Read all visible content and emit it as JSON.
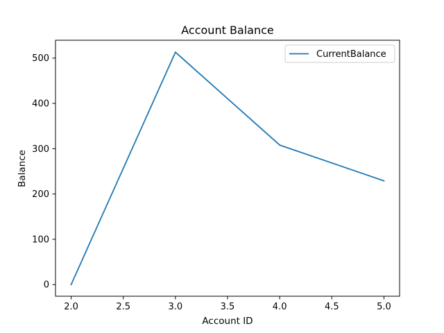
{
  "chart_data": {
    "type": "line",
    "title": "Account Balance",
    "xlabel": "Account ID",
    "ylabel": "Balance",
    "xlim": [
      1.85,
      5.15
    ],
    "ylim": [
      -25.7,
      539.4
    ],
    "xticks": [
      2.0,
      2.5,
      3.0,
      3.5,
      4.0,
      4.5,
      5.0
    ],
    "xtick_labels": [
      "2.0",
      "2.5",
      "3.0",
      "3.5",
      "4.0",
      "4.5",
      "5.0"
    ],
    "yticks": [
      0,
      100,
      200,
      300,
      400,
      500
    ],
    "ytick_labels": [
      "0",
      "100",
      "200",
      "300",
      "400",
      "500"
    ],
    "grid": false,
    "legend_position": "top-right",
    "series": [
      {
        "name": "CurrentBalance",
        "color": "#1f77b4",
        "x": [
          2.0,
          3.0,
          4.0,
          5.0
        ],
        "y": [
          0,
          513,
          308,
          229
        ]
      }
    ]
  }
}
